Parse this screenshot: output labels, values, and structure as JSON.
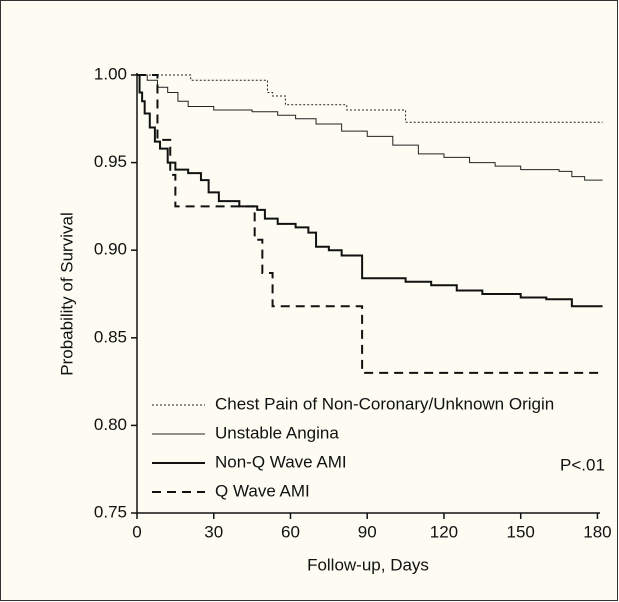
{
  "chart_data": {
    "type": "line",
    "step": true,
    "ylabel": "Probability of Survival",
    "xlabel": "Follow-up, Days",
    "annotation": "P<.01",
    "xlim": [
      0,
      181
    ],
    "ylim": [
      0.75,
      1.0
    ],
    "xticks": [
      0,
      30,
      60,
      90,
      120,
      150,
      180
    ],
    "yticks": [
      {
        "value": 0.75,
        "label": "0.75"
      },
      {
        "value": 0.8,
        "label": "0.80"
      },
      {
        "value": 0.85,
        "label": "0.85"
      },
      {
        "value": 0.9,
        "label": "0.90"
      },
      {
        "value": 0.95,
        "label": "0.95"
      },
      {
        "value": 1.0,
        "label": "1.00"
      }
    ],
    "series": [
      {
        "name": "Chest Pain of Non-Coronary/Unknown Origin",
        "color": "#222",
        "style": "dotted",
        "x": [
          0,
          21,
          51,
          53,
          58,
          82,
          105,
          182
        ],
        "values": [
          1.0,
          0.997,
          0.99,
          0.988,
          0.983,
          0.98,
          0.973,
          0.973
        ]
      },
      {
        "name": "Unstable Angina",
        "color": "#222",
        "style": "thin",
        "x": [
          0,
          4,
          8,
          12,
          16,
          20,
          30,
          45,
          55,
          62,
          70,
          80,
          90,
          100,
          110,
          120,
          130,
          140,
          150,
          165,
          170,
          175,
          182
        ],
        "values": [
          1.0,
          0.997,
          0.993,
          0.99,
          0.985,
          0.982,
          0.98,
          0.979,
          0.977,
          0.975,
          0.972,
          0.968,
          0.965,
          0.96,
          0.955,
          0.953,
          0.95,
          0.948,
          0.946,
          0.945,
          0.942,
          0.94,
          0.94
        ]
      },
      {
        "name": "Non-Q Wave AMI",
        "color": "#111",
        "style": "thick",
        "x": [
          0,
          1,
          2,
          3,
          5,
          7,
          9,
          12,
          15,
          20,
          25,
          28,
          32,
          40,
          47,
          50,
          55,
          62,
          67,
          70,
          75,
          80,
          88,
          105,
          115,
          125,
          135,
          150,
          160,
          170,
          182
        ],
        "values": [
          1.0,
          0.99,
          0.985,
          0.978,
          0.97,
          0.962,
          0.958,
          0.95,
          0.946,
          0.944,
          0.94,
          0.933,
          0.928,
          0.925,
          0.923,
          0.918,
          0.915,
          0.913,
          0.91,
          0.902,
          0.9,
          0.897,
          0.884,
          0.882,
          0.88,
          0.877,
          0.875,
          0.873,
          0.872,
          0.868,
          0.868
        ]
      },
      {
        "name": "Q Wave AMI",
        "color": "#111",
        "style": "dashed",
        "x": [
          0,
          8,
          13,
          15,
          46,
          49,
          53,
          88,
          182
        ],
        "values": [
          1.0,
          0.963,
          0.943,
          0.925,
          0.906,
          0.887,
          0.868,
          0.83,
          0.83
        ]
      }
    ]
  }
}
